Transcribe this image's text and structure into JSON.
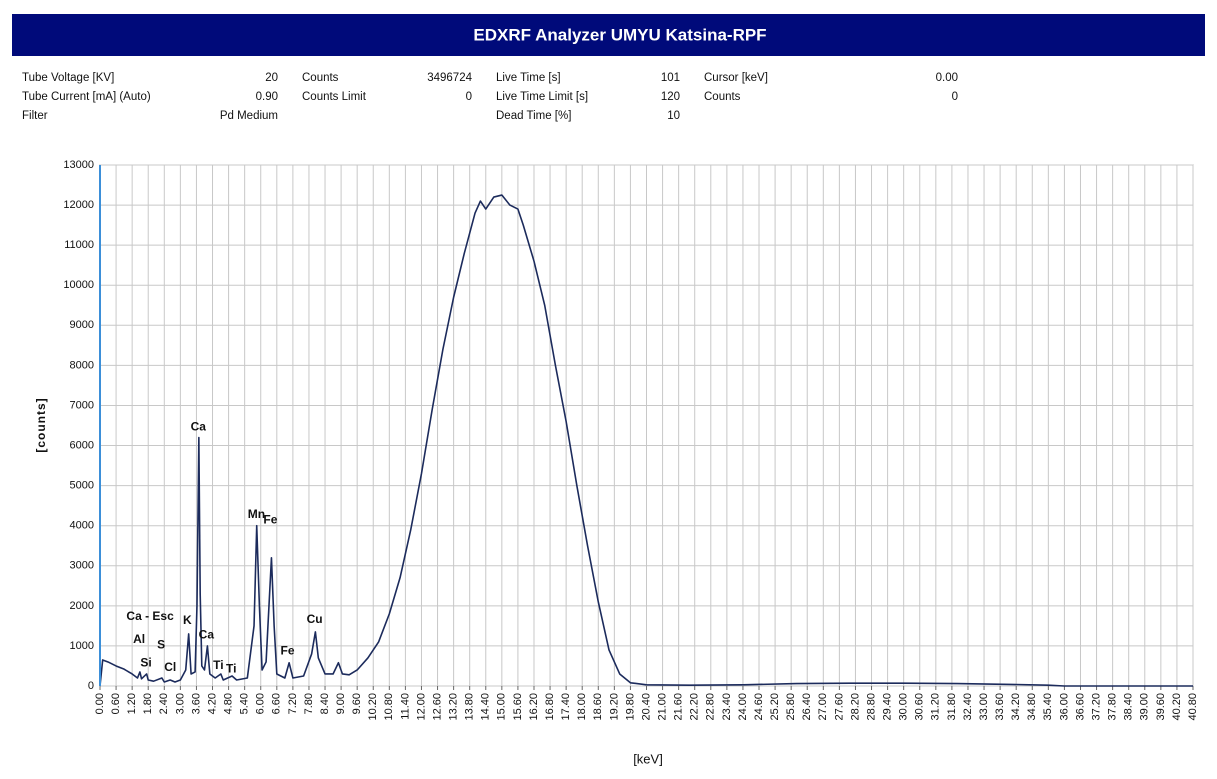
{
  "header": {
    "title": "EDXRF Analyzer UMYU Katsina-RPF"
  },
  "info_columns": [
    [
      {
        "label": "Tube Voltage [KV]",
        "value": "20"
      },
      {
        "label": "Tube Current [mA] (Auto)",
        "value": "0.90"
      },
      {
        "label": "Filter",
        "value": "Pd Medium"
      }
    ],
    [
      {
        "label": "Counts",
        "value": "3496724"
      },
      {
        "label": "Counts Limit",
        "value": "0"
      }
    ],
    [
      {
        "label": "Live Time [s]",
        "value": "101"
      },
      {
        "label": "Live Time Limit [s]",
        "value": "120"
      },
      {
        "label": "Dead Time [%]",
        "value": "10"
      }
    ],
    [
      {
        "label": "Cursor [keV]",
        "value": "0.00"
      },
      {
        "label": "Counts",
        "value": "0"
      }
    ]
  ],
  "chart_data": {
    "type": "line",
    "xlabel": "[keV]",
    "ylabel": "[counts]",
    "color": "#1c2b5c",
    "grid": true,
    "xlim": [
      0,
      40.8
    ],
    "ylim": [
      0,
      13000
    ],
    "yticks": [
      0,
      1000,
      2000,
      3000,
      4000,
      5000,
      6000,
      7000,
      8000,
      9000,
      10000,
      11000,
      12000,
      13000
    ],
    "xticks": [
      {
        "value": 0,
        "label": "0.00"
      },
      {
        "value": 0.6,
        "label": "0.60"
      },
      {
        "value": 1.2,
        "label": "1.20"
      },
      {
        "value": 1.8,
        "label": "1.80"
      },
      {
        "value": 2.4,
        "label": "2.40"
      },
      {
        "value": 3,
        "label": "3.00"
      },
      {
        "value": 3.6,
        "label": "3.60"
      },
      {
        "value": 4.2,
        "label": "4.20"
      },
      {
        "value": 4.8,
        "label": "4.80"
      },
      {
        "value": 5.4,
        "label": "5.40"
      },
      {
        "value": 6,
        "label": "6.00"
      },
      {
        "value": 6.6,
        "label": "6.60"
      },
      {
        "value": 7.2,
        "label": "7.20"
      },
      {
        "value": 7.8,
        "label": "7.80"
      },
      {
        "value": 8.4,
        "label": "8.40"
      },
      {
        "value": 9,
        "label": "9.00"
      },
      {
        "value": 9.6,
        "label": "9.60"
      },
      {
        "value": 10.2,
        "label": "10.20"
      },
      {
        "value": 10.8,
        "label": "10.80"
      },
      {
        "value": 11.4,
        "label": "11.40"
      },
      {
        "value": 12,
        "label": "12.00"
      },
      {
        "value": 12.6,
        "label": "12.60"
      },
      {
        "value": 13.2,
        "label": "13.20"
      },
      {
        "value": 13.8,
        "label": "13.80"
      },
      {
        "value": 14.4,
        "label": "14.40"
      },
      {
        "value": 15,
        "label": "15.00"
      },
      {
        "value": 15.6,
        "label": "15.60"
      },
      {
        "value": 16.2,
        "label": "16.20"
      },
      {
        "value": 16.8,
        "label": "16.80"
      },
      {
        "value": 17.4,
        "label": "17.40"
      },
      {
        "value": 18,
        "label": "18.00"
      },
      {
        "value": 18.6,
        "label": "18.60"
      },
      {
        "value": 19.2,
        "label": "19.20"
      },
      {
        "value": 19.8,
        "label": "19.80"
      },
      {
        "value": 20.4,
        "label": "20.40"
      },
      {
        "value": 21,
        "label": "21.00"
      },
      {
        "value": 21.6,
        "label": "21.60"
      },
      {
        "value": 22.2,
        "label": "22.20"
      },
      {
        "value": 22.8,
        "label": "22.80"
      },
      {
        "value": 23.4,
        "label": "23.40"
      },
      {
        "value": 24,
        "label": "24.00"
      },
      {
        "value": 24.6,
        "label": "24.60"
      },
      {
        "value": 25.2,
        "label": "25.20"
      },
      {
        "value": 25.8,
        "label": "25.80"
      },
      {
        "value": 26.4,
        "label": "26.40"
      },
      {
        "value": 27,
        "label": "27.00"
      },
      {
        "value": 27.6,
        "label": "27.60"
      },
      {
        "value": 28.2,
        "label": "28.20"
      },
      {
        "value": 28.8,
        "label": "28.80"
      },
      {
        "value": 29.4,
        "label": "29.40"
      },
      {
        "value": 30,
        "label": "30.00"
      },
      {
        "value": 30.6,
        "label": "30.60"
      },
      {
        "value": 31.2,
        "label": "31.20"
      },
      {
        "value": 31.8,
        "label": "31.80"
      },
      {
        "value": 32.4,
        "label": "32.40"
      },
      {
        "value": 33,
        "label": "33.00"
      },
      {
        "value": 33.6,
        "label": "33.60"
      },
      {
        "value": 34.2,
        "label": "34.20"
      },
      {
        "value": 34.8,
        "label": "34.80"
      },
      {
        "value": 35.4,
        "label": "35.40"
      },
      {
        "value": 36,
        "label": "36.00"
      },
      {
        "value": 36.6,
        "label": "36.60"
      },
      {
        "value": 37.2,
        "label": "37.20"
      },
      {
        "value": 37.8,
        "label": "37.80"
      },
      {
        "value": 38.4,
        "label": "38.40"
      },
      {
        "value": 39,
        "label": "39.00"
      },
      {
        "value": 39.6,
        "label": "39.60"
      },
      {
        "value": 40.2,
        "label": "40.20"
      },
      {
        "value": 40.8,
        "label": "40.80"
      }
    ],
    "x": [
      0,
      0.1,
      0.3,
      0.6,
      0.9,
      1.2,
      1.4,
      1.49,
      1.55,
      1.74,
      1.8,
      2.0,
      2.31,
      2.4,
      2.62,
      2.8,
      3.0,
      3.2,
      3.31,
      3.4,
      3.55,
      3.62,
      3.69,
      3.74,
      3.8,
      3.9,
      4.01,
      4.1,
      4.3,
      4.51,
      4.6,
      4.93,
      5.1,
      5.5,
      5.75,
      5.85,
      5.95,
      6.05,
      6.2,
      6.4,
      6.5,
      6.6,
      6.9,
      7.06,
      7.2,
      7.6,
      7.9,
      8.04,
      8.15,
      8.4,
      8.7,
      8.9,
      9.05,
      9.3,
      9.6,
      10.0,
      10.4,
      10.8,
      11.2,
      11.6,
      12.0,
      12.4,
      12.8,
      13.2,
      13.6,
      14.0,
      14.2,
      14.4,
      14.7,
      15.0,
      15.3,
      15.6,
      15.8,
      16.2,
      16.6,
      17.0,
      17.4,
      17.8,
      18.2,
      18.6,
      19.0,
      19.4,
      19.8,
      20.4,
      22,
      24,
      26,
      28,
      30,
      32,
      34,
      35.4,
      36,
      40.8
    ],
    "values": [
      0,
      650,
      600,
      500,
      420,
      300,
      200,
      350,
      180,
      300,
      150,
      120,
      200,
      100,
      150,
      100,
      150,
      400,
      1300,
      300,
      350,
      2000,
      6200,
      2300,
      500,
      400,
      1000,
      300,
      200,
      300,
      150,
      250,
      150,
      200,
      1500,
      4000,
      2000,
      400,
      600,
      3200,
      1500,
      300,
      200,
      580,
      200,
      250,
      800,
      1350,
      700,
      300,
      300,
      580,
      300,
      280,
      400,
      700,
      1100,
      1800,
      2700,
      3900,
      5300,
      6900,
      8400,
      9700,
      10800,
      11800,
      12100,
      11900,
      12200,
      12250,
      12000,
      11900,
      11500,
      10600,
      9500,
      8000,
      6600,
      5000,
      3500,
      2100,
      900,
      300,
      80,
      30,
      20,
      30,
      60,
      70,
      70,
      60,
      40,
      20,
      0,
      0
    ],
    "annotations": [
      {
        "text": "Ca - Esc",
        "x": 1.87,
        "y": 1720
      },
      {
        "text": "Al",
        "x": 1.46,
        "y": 1150
      },
      {
        "text": "Si",
        "x": 1.72,
        "y": 570
      },
      {
        "text": "S",
        "x": 2.28,
        "y": 1020
      },
      {
        "text": "Cl",
        "x": 2.62,
        "y": 450
      },
      {
        "text": "K",
        "x": 3.26,
        "y": 1620
      },
      {
        "text": "Ca",
        "x": 3.67,
        "y": 6460
      },
      {
        "text": "Ca",
        "x": 3.97,
        "y": 1270
      },
      {
        "text": "Ti",
        "x": 4.42,
        "y": 500
      },
      {
        "text": "Ti",
        "x": 4.9,
        "y": 420
      },
      {
        "text": "Mn",
        "x": 5.84,
        "y": 4270
      },
      {
        "text": "Fe",
        "x": 6.36,
        "y": 4140
      },
      {
        "text": "Fe",
        "x": 7.0,
        "y": 870
      },
      {
        "text": "Cu",
        "x": 8.01,
        "y": 1650
      }
    ]
  }
}
